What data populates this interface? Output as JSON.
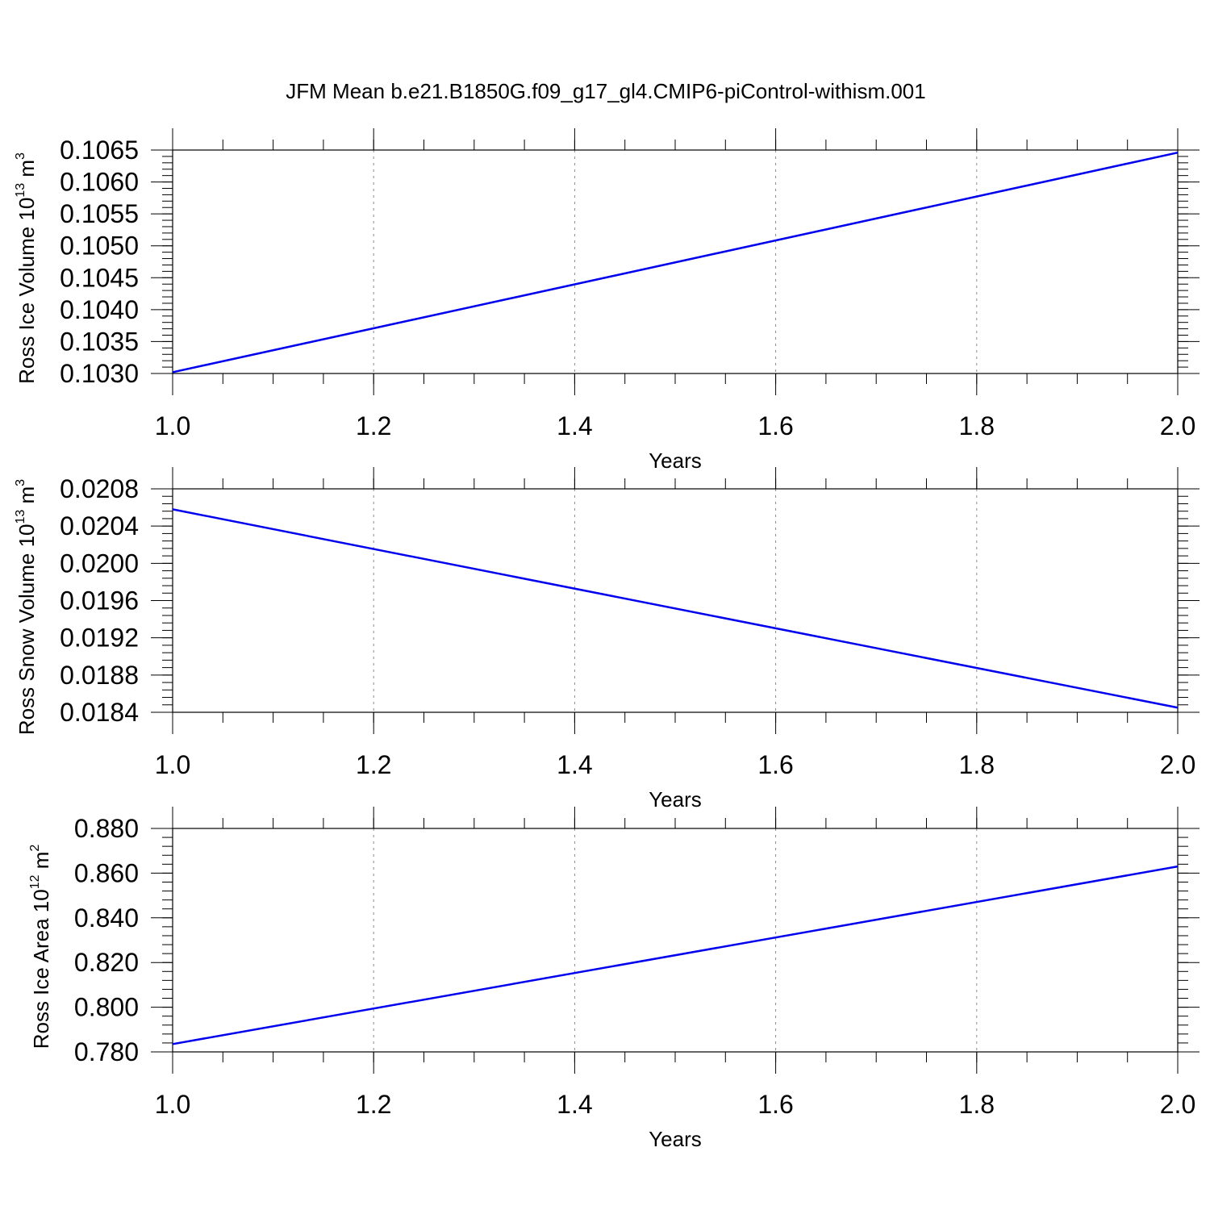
{
  "title": "JFM Mean b.e21.B1850G.f09_g17_gl4.CMIP6-piControl-withism.001",
  "colors": {
    "line": "#0000ee",
    "axis": "#000000",
    "grid": "#888888"
  },
  "chart_data": [
    {
      "type": "line",
      "xlabel": "Years",
      "ylabel": {
        "text": "Ross Ice Volume 10",
        "exp": "13",
        "unit": " m",
        "unit_exp": "3"
      },
      "xlim": [
        1.0,
        2.0
      ],
      "ylim": [
        0.103,
        0.1065
      ],
      "xticks": [
        "1.0",
        "1.2",
        "1.4",
        "1.6",
        "1.8",
        "2.0"
      ],
      "yticks": [
        "0.1030",
        "0.1035",
        "0.1040",
        "0.1045",
        "0.1050",
        "0.1055",
        "0.1060",
        "0.1065"
      ],
      "grid": "vertical dashed",
      "x": [
        1.0,
        2.0
      ],
      "y": [
        0.10302,
        0.10646
      ]
    },
    {
      "type": "line",
      "xlabel": "Years",
      "ylabel": {
        "text": "Ross Snow Volume 10",
        "exp": "13",
        "unit": " m",
        "unit_exp": "3"
      },
      "xlim": [
        1.0,
        2.0
      ],
      "ylim": [
        0.0184,
        0.0208
      ],
      "xticks": [
        "1.0",
        "1.2",
        "1.4",
        "1.6",
        "1.8",
        "2.0"
      ],
      "yticks": [
        "0.0184",
        "0.0188",
        "0.0192",
        "0.0196",
        "0.0200",
        "0.0204",
        "0.0208"
      ],
      "grid": "vertical dashed",
      "x": [
        1.0,
        2.0
      ],
      "y": [
        0.02058,
        0.01845
      ]
    },
    {
      "type": "line",
      "xlabel": "Years",
      "ylabel": {
        "text": "Ross Ice Area 10",
        "exp": "12",
        "unit": " m",
        "unit_exp": "2"
      },
      "xlim": [
        1.0,
        2.0
      ],
      "ylim": [
        0.78,
        0.88
      ],
      "xticks": [
        "1.0",
        "1.2",
        "1.4",
        "1.6",
        "1.8",
        "2.0"
      ],
      "yticks": [
        "0.780",
        "0.800",
        "0.820",
        "0.840",
        "0.860",
        "0.880"
      ],
      "grid": "vertical dashed",
      "x": [
        1.0,
        2.0
      ],
      "y": [
        0.7835,
        0.863
      ]
    }
  ]
}
